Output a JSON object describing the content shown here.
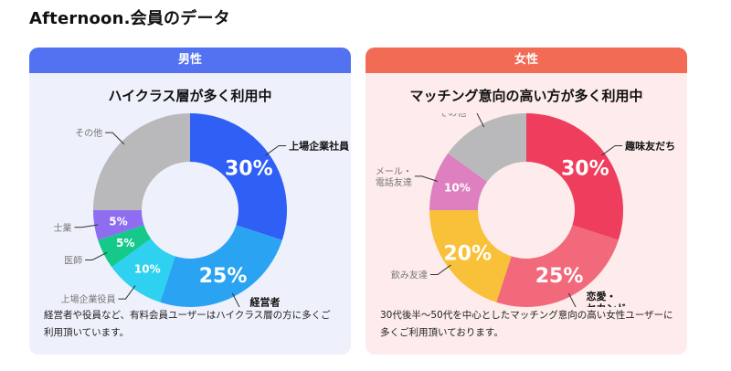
{
  "title": "Afternoon.会員のデータ",
  "chart_data": [
    {
      "type": "pie",
      "variant": "donut",
      "header": "男性",
      "title": "ハイクラス層が多く利用中",
      "description": "経営者や役員など、有料会員ユーザーはハイクラス層の方に多くご利用頂いています。",
      "header_color": "#5272f2",
      "slices": [
        {
          "label": "上場企業社員",
          "value": 30,
          "display": "30%",
          "color": "#2f5ff5"
        },
        {
          "label": "経営者\n自営業",
          "value": 25,
          "display": "25%",
          "color": "#2aa3f2"
        },
        {
          "label": "上場企業役員",
          "value": 10,
          "display": "10%",
          "color": "#2ed1f0"
        },
        {
          "label": "医師",
          "value": 5,
          "display": "5%",
          "color": "#14c98a"
        },
        {
          "label": "士業",
          "value": 5,
          "display": "5%",
          "color": "#8f6df0"
        },
        {
          "label": "その他",
          "value": 25,
          "display": "",
          "color": "#b9b9bc"
        }
      ]
    },
    {
      "type": "pie",
      "variant": "donut",
      "header": "女性",
      "title": "マッチング意向の高い方が多く利用中",
      "description": "30代後半〜50代を中心としたマッチング意向の高い女性ユーザーに多くご利用頂いております。",
      "header_color": "#f26b55",
      "slices": [
        {
          "label": "趣味友だち",
          "value": 30,
          "display": "30%",
          "color": "#ef3d5e"
        },
        {
          "label": "恋愛・\nセカンド\nパートナー",
          "value": 25,
          "display": "25%",
          "color": "#f2697b"
        },
        {
          "label": "飲み友達",
          "value": 20,
          "display": "20%",
          "color": "#f9c13a"
        },
        {
          "label": "メール・\n電話友達",
          "value": 10,
          "display": "10%",
          "color": "#de7fc0"
        },
        {
          "label": "その他",
          "value": 15,
          "display": "",
          "color": "#b9b9bc"
        }
      ]
    }
  ]
}
